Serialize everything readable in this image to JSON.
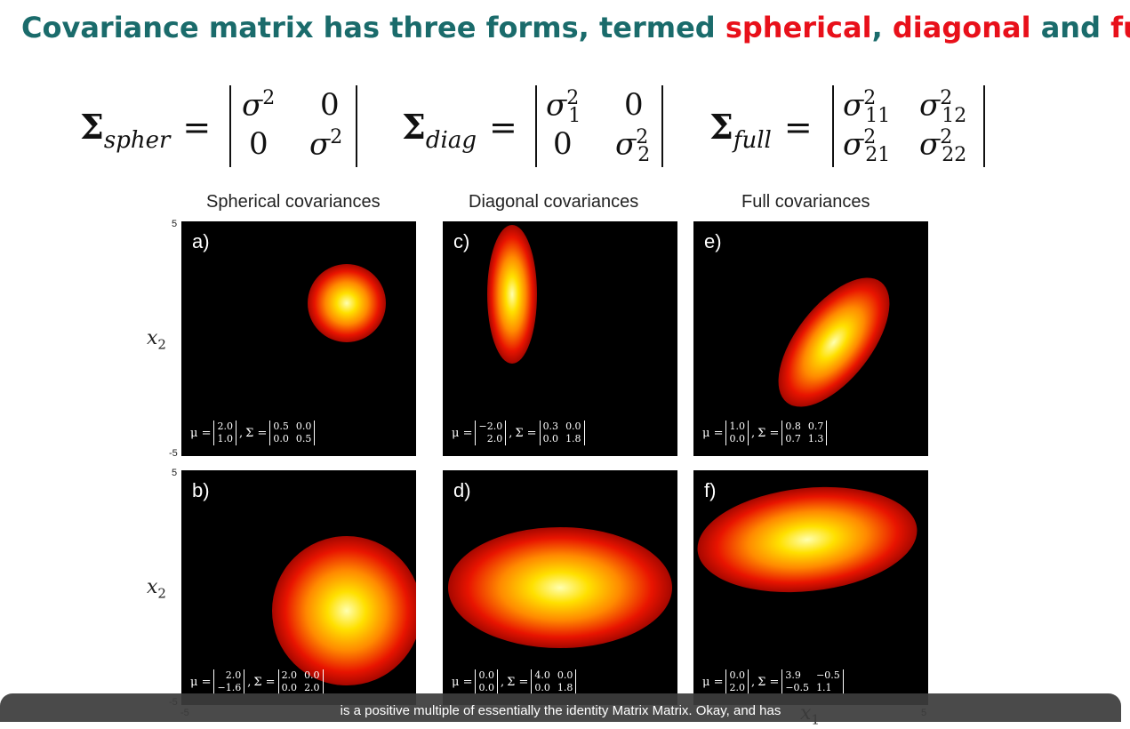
{
  "title": {
    "prefix": "Covariance matrix has three forms, termed ",
    "spherical": "spherical",
    "comma": ",",
    "diagonal": "diagonal",
    "and": " and ",
    "full": "full"
  },
  "equations": {
    "spher": {
      "symbol": "Σ",
      "sub": "spher",
      "eq": "=",
      "m11": "σ",
      "m11sup": "2",
      "m12": "0",
      "m21": "0",
      "m22": "σ",
      "m22sup": "2"
    },
    "diag": {
      "symbol": "Σ",
      "sub": "diag",
      "eq": "=",
      "m11": "σ",
      "m11sup": "2",
      "m11sub": "1",
      "m12": "0",
      "m21": "0",
      "m22": "σ",
      "m22sup": "2",
      "m22sub": "2"
    },
    "full": {
      "symbol": "Σ",
      "sub": "full",
      "eq": "=",
      "m11": "σ",
      "m11sup": "2",
      "m11sub": "11",
      "m12": "σ",
      "m12sup": "2",
      "m12sub": "12",
      "m21": "σ",
      "m21sup": "2",
      "m21sub": "21",
      "m22": "σ",
      "m22sup": "2",
      "m22sub": "22"
    }
  },
  "column_titles": [
    "Spherical covariances",
    "Diagonal covariances",
    "Full covariances"
  ],
  "axes": {
    "x2": "x",
    "x2sub": "2",
    "x1": "x",
    "x1sub": "1",
    "tick_hi": "5",
    "tick_lo": "-5"
  },
  "panels": [
    {
      "label": "a)",
      "mu": [
        "2.0",
        "1.0"
      ],
      "sigma": [
        "0.5",
        "0.0",
        "0.0",
        "0.5"
      ]
    },
    {
      "label": "c)",
      "mu": [
        "−2.0",
        "2.0"
      ],
      "sigma": [
        "0.3",
        "0.0",
        "0.0",
        "1.8"
      ]
    },
    {
      "label": "e)",
      "mu": [
        "1.0",
        "0.0"
      ],
      "sigma": [
        "0.8",
        "0.7",
        "0.7",
        "1.3"
      ]
    },
    {
      "label": "b)",
      "mu": [
        "2.0",
        "−1.6"
      ],
      "sigma": [
        "2.0",
        "0.0",
        "0.0",
        "2.0"
      ]
    },
    {
      "label": "d)",
      "mu": [
        "0.0",
        "0.0"
      ],
      "sigma": [
        "4.0",
        "0.0",
        "0.0",
        "1.8"
      ]
    },
    {
      "label": "f)",
      "mu": [
        "0.0",
        "2.0"
      ],
      "sigma": [
        "3.9",
        "−0.5",
        "−0.5",
        "1.1"
      ]
    }
  ],
  "param_labels": {
    "mu": "μ =",
    "sigma": "Σ =",
    "comma": ","
  },
  "caption": "is a positive multiple of essentially the identity Matrix Matrix. Okay, and has"
}
